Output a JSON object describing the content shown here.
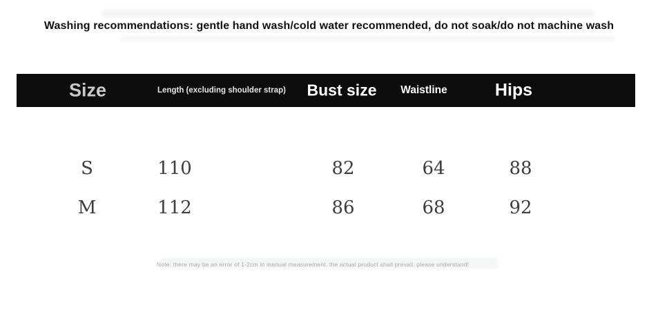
{
  "washing": {
    "text": "Washing recommendations: gentle hand wash/cold water recommended, do not soak/do not machine wash"
  },
  "size_table": {
    "headers": {
      "size": "Size",
      "length": "Length (excluding shoulder strap)",
      "bust": "Bust size",
      "waist": "Waistline",
      "hips": "Hips"
    },
    "rows": [
      {
        "size": "S",
        "length": "110",
        "bust": "82",
        "waist": "64",
        "hips": "88"
      },
      {
        "size": "M",
        "length": "112",
        "bust": "86",
        "waist": "68",
        "hips": "92"
      }
    ]
  },
  "footnote": {
    "text": "Note: there may be an error of 1-2cm in manual measurement. the actual product shall prevail. please understand!"
  },
  "colors": {
    "header_bg": "#0c0c0c",
    "header_text": "#ffffff",
    "size_header_text": "#c9c9c9",
    "data_text": "#3d3d3d",
    "note_text": "#a9a9a9",
    "title_text": "#111111"
  }
}
